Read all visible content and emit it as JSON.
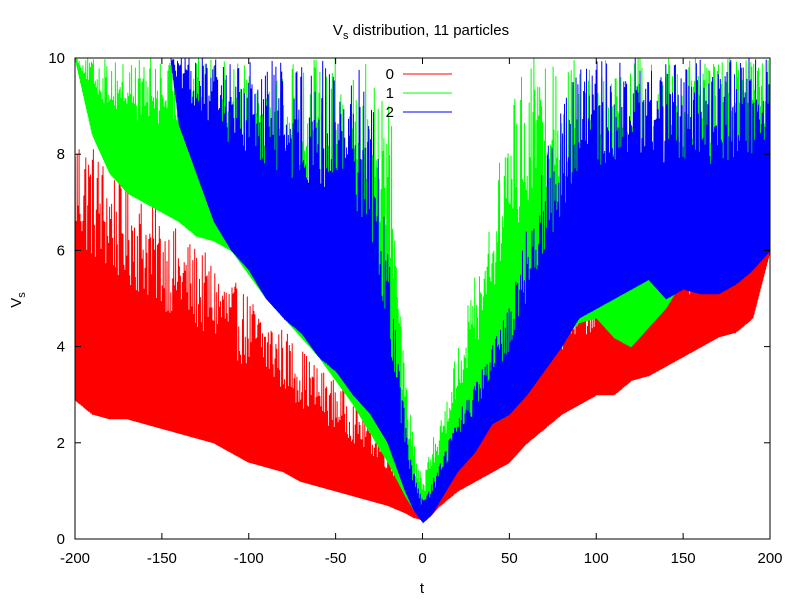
{
  "chart_data": {
    "type": "line",
    "title": {
      "main": "V",
      "sub": "s",
      "rest": " distribution, 11 particles"
    },
    "xlabel": "t",
    "ylabel": {
      "main": "V",
      "sub": "s"
    },
    "xlim": [
      -200,
      200
    ],
    "ylim": [
      0,
      10
    ],
    "x_ticks": [
      -200,
      -150,
      -100,
      -50,
      0,
      50,
      100,
      150,
      200
    ],
    "x_tick_labels": [
      "-200",
      "-150",
      "-100",
      "-50",
      "0",
      "50",
      "100",
      "150",
      "200"
    ],
    "y_ticks": [
      0,
      2,
      4,
      6,
      8,
      10
    ],
    "y_tick_labels": [
      "0",
      "2",
      "4",
      "6",
      "8",
      "10"
    ],
    "grid": false,
    "legend_position": "top-center",
    "series": [
      {
        "name": "0",
        "color": "#ff0000",
        "envelope": {
          "t": [
            -200,
            -190,
            -180,
            -170,
            -160,
            -150,
            -140,
            -130,
            -120,
            -110,
            -100,
            -90,
            -80,
            -70,
            -60,
            -50,
            -40,
            -30,
            -20,
            -10,
            -5,
            0,
            5,
            10,
            20,
            30,
            40,
            50,
            60,
            70,
            80,
            90,
            100,
            110,
            120,
            130,
            140,
            150,
            160,
            170,
            180,
            190,
            200
          ],
          "lower": [
            2.9,
            2.6,
            2.5,
            2.5,
            2.4,
            2.3,
            2.2,
            2.1,
            2.0,
            1.8,
            1.6,
            1.5,
            1.4,
            1.2,
            1.1,
            1.0,
            0.9,
            0.8,
            0.7,
            0.55,
            0.45,
            0.4,
            0.5,
            0.7,
            1.0,
            1.2,
            1.4,
            1.6,
            2.0,
            2.3,
            2.6,
            2.8,
            3.0,
            3.0,
            3.3,
            3.4,
            3.6,
            3.8,
            4.0,
            4.2,
            4.3,
            4.6,
            6.0
          ],
          "upper": [
            8.7,
            8.3,
            7.8,
            7.5,
            7.1,
            6.8,
            6.4,
            6.1,
            5.8,
            5.4,
            5.1,
            4.7,
            4.4,
            4.0,
            3.6,
            3.3,
            2.9,
            2.5,
            2.0,
            1.4,
            1.0,
            0.7,
            1.2,
            1.6,
            2.4,
            2.8,
            3.4,
            3.8,
            4.6,
            4.8,
            5.0,
            5.2,
            5.4,
            5.5,
            5.7,
            5.8,
            5.9,
            6.0,
            6.2,
            6.5,
            7.2,
            8.0,
            8.4
          ]
        }
      },
      {
        "name": "1",
        "color": "#00ff00",
        "envelope": {
          "t": [
            -200,
            -190,
            -180,
            -170,
            -160,
            -150,
            -140,
            -130,
            -120,
            -110,
            -100,
            -90,
            -80,
            -70,
            -60,
            -50,
            -40,
            -30,
            -20,
            -10,
            -5,
            0,
            5,
            10,
            20,
            30,
            40,
            50,
            60,
            70,
            80,
            90,
            100,
            110,
            120,
            130,
            140,
            150,
            160,
            170,
            180,
            190,
            200
          ],
          "lower": [
            10.0,
            8.4,
            7.6,
            7.2,
            7.0,
            6.8,
            6.6,
            6.3,
            6.2,
            6.0,
            5.5,
            5.0,
            4.6,
            4.2,
            3.8,
            3.3,
            2.8,
            2.2,
            1.6,
            0.9,
            0.6,
            0.4,
            0.6,
            0.9,
            1.6,
            2.0,
            2.4,
            2.6,
            3.2,
            3.8,
            4.2,
            4.5,
            4.6,
            4.2,
            4.0,
            4.4,
            4.8,
            5.4,
            5.8,
            6.2,
            6.6,
            6.8,
            7.0
          ],
          "upper": [
            10.0,
            10.0,
            10.0,
            10.0,
            10.0,
            10.0,
            10.0,
            10.0,
            10.0,
            10.0,
            10.0,
            10.0,
            10.0,
            10.0,
            10.0,
            10.0,
            10.0,
            10.0,
            10.0,
            3.5,
            2.0,
            1.2,
            2.0,
            2.5,
            4.0,
            5.5,
            7.0,
            9.0,
            10.0,
            10.0,
            10.0,
            10.0,
            10.0,
            10.0,
            10.0,
            10.0,
            10.0,
            10.0,
            10.0,
            10.0,
            10.0,
            10.0,
            10.0
          ]
        }
      },
      {
        "name": "2",
        "color": "#0000ff",
        "envelope": {
          "t": [
            -145,
            -140,
            -130,
            -120,
            -110,
            -100,
            -90,
            -80,
            -70,
            -60,
            -50,
            -40,
            -30,
            -20,
            -10,
            -5,
            0,
            5,
            10,
            20,
            30,
            40,
            50,
            60,
            70,
            80,
            90,
            100,
            110,
            120,
            130,
            140,
            150,
            160,
            170,
            180,
            190,
            200
          ],
          "lower": [
            10.0,
            8.6,
            7.6,
            6.6,
            6.0,
            5.6,
            5.0,
            4.6,
            4.3,
            3.8,
            3.5,
            3.0,
            2.6,
            2.0,
            1.0,
            0.6,
            0.35,
            0.5,
            0.8,
            1.4,
            1.8,
            2.4,
            2.6,
            3.0,
            3.5,
            4.0,
            4.6,
            4.8,
            5.0,
            5.2,
            5.4,
            5.0,
            5.2,
            5.1,
            5.1,
            5.3,
            5.6,
            6.0
          ],
          "upper": [
            10.0,
            10.0,
            10.0,
            10.0,
            10.0,
            10.0,
            10.0,
            10.0,
            10.0,
            10.0,
            10.0,
            10.0,
            9.5,
            6.0,
            2.5,
            1.4,
            0.8,
            1.2,
            1.6,
            2.6,
            3.2,
            4.0,
            5.0,
            6.5,
            8.0,
            9.0,
            10.0,
            10.0,
            10.0,
            10.0,
            10.0,
            10.0,
            10.0,
            10.0,
            10.0,
            10.0,
            10.0,
            10.0
          ]
        }
      }
    ]
  }
}
